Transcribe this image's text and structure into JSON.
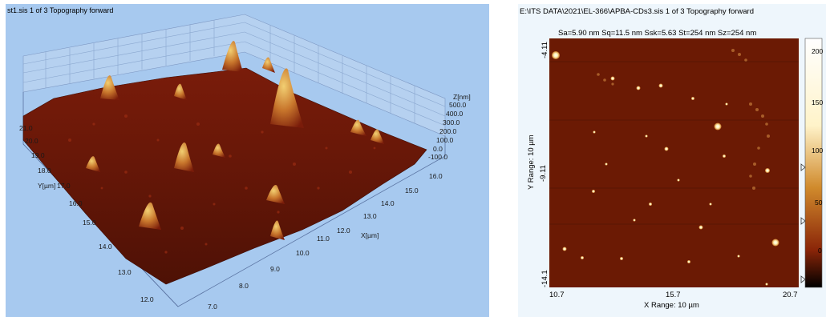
{
  "left": {
    "title": "st1.sis 1 of 3 Topography forward",
    "z_label": "Z[nm]",
    "z_ticks": [
      "500.0",
      "400.0",
      "300.0",
      "200.0",
      "100.0",
      "0.0",
      "-100.0"
    ],
    "y_label": "Y[µm]",
    "y_ticks": [
      "21.0",
      "20.0",
      "19.0",
      "18.0",
      "17.0",
      "16.0",
      "15.0",
      "14.0",
      "13.0",
      "12.0"
    ],
    "x_label": "X[µm]",
    "x_ticks_right": [
      "16.0",
      "15.0",
      "14.0",
      "13.0",
      "12.0",
      "11.0",
      "10.0",
      "9.0",
      "8.0",
      "7.0"
    ]
  },
  "right": {
    "title": "E:\\ITS DATA\\2021\\EL-366\\APBA-CDs3.sis 1 of 3 Topography forward",
    "stats": "Sa=5.90 nm  Sq=11.5 nm  Ssk=5.63   St=254 nm  Sz=254 nm",
    "y_range_label": "Y Range: 10 µm",
    "y_ticks": [
      "-4.11",
      "-9.11",
      "-14.1"
    ],
    "x_ticks": [
      "10.7",
      "15.7",
      "20.7"
    ],
    "x_range_label": "X Range: 10 µm",
    "colorbar_ticks": [
      "200",
      "150",
      "100",
      "50",
      "0"
    ],
    "colors": {
      "bg": "#6b1a04",
      "particle": "#fff4c0",
      "colorbar_top": "#ffffff",
      "colorbar_bottom": "#000000"
    }
  }
}
